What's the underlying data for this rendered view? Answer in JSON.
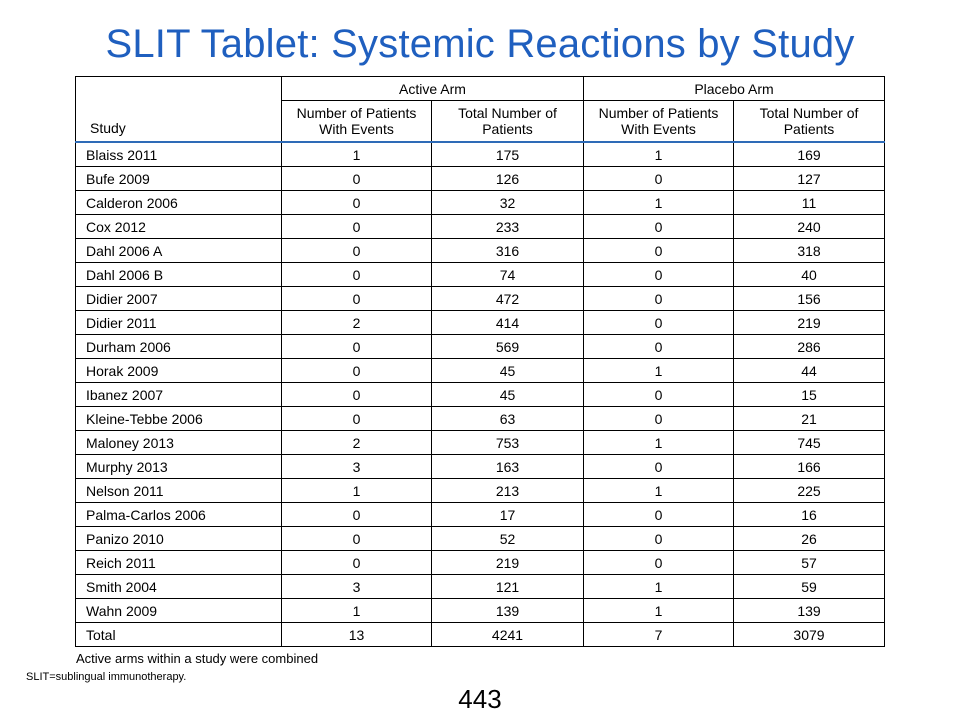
{
  "title": "SLIT Tablet: Systemic Reactions by Study",
  "table": {
    "study_header": "Study",
    "active_arm": "Active Arm",
    "placebo_arm": "Placebo Arm",
    "col_events": "Number of Patients With Events",
    "col_total_active": "Total Number of Patients",
    "col_events_placebo": "Number of Patients With Events",
    "col_total_placebo": "Total Number of Patients",
    "rows": [
      [
        "Blaiss 2011",
        "1",
        "175",
        "1",
        "169"
      ],
      [
        "Bufe 2009",
        "0",
        "126",
        "0",
        "127"
      ],
      [
        "Calderon 2006",
        "0",
        "32",
        "1",
        "11"
      ],
      [
        "Cox 2012",
        "0",
        "233",
        "0",
        "240"
      ],
      [
        "Dahl 2006 A",
        "0",
        "316",
        "0",
        "318"
      ],
      [
        "Dahl 2006 B",
        "0",
        "74",
        "0",
        "40"
      ],
      [
        "Didier 2007",
        "0",
        "472",
        "0",
        "156"
      ],
      [
        "Didier 2011",
        "2",
        "414",
        "0",
        "219"
      ],
      [
        "Durham 2006",
        "0",
        "569",
        "0",
        "286"
      ],
      [
        "Horak 2009",
        "0",
        "45",
        "1",
        "44"
      ],
      [
        "Ibanez 2007",
        "0",
        "45",
        "0",
        "15"
      ],
      [
        "Kleine-Tebbe 2006",
        "0",
        "63",
        "0",
        "21"
      ],
      [
        "Maloney 2013",
        "2",
        "753",
        "1",
        "745"
      ],
      [
        "Murphy 2013",
        "3",
        "163",
        "0",
        "166"
      ],
      [
        "Nelson 2011",
        "1",
        "213",
        "1",
        "225"
      ],
      [
        "Palma-Carlos 2006",
        "0",
        "17",
        "0",
        "16"
      ],
      [
        "Panizo 2010",
        "0",
        "52",
        "0",
        "26"
      ],
      [
        "Reich 2011",
        "0",
        "219",
        "0",
        "57"
      ],
      [
        "Smith 2004",
        "3",
        "121",
        "1",
        "59"
      ],
      [
        "Wahn 2009",
        "1",
        "139",
        "1",
        "139"
      ]
    ],
    "total_row": [
      "Total",
      "13",
      "4241",
      "7",
      "3079"
    ]
  },
  "footnotes": {
    "combined": "Active arms within a study were combined",
    "abbrev": "SLIT=sublingual  immunotherapy."
  },
  "page_number": "443",
  "colors": {
    "title": "#1f5fbf",
    "header_rule": "#2e6bb7"
  }
}
